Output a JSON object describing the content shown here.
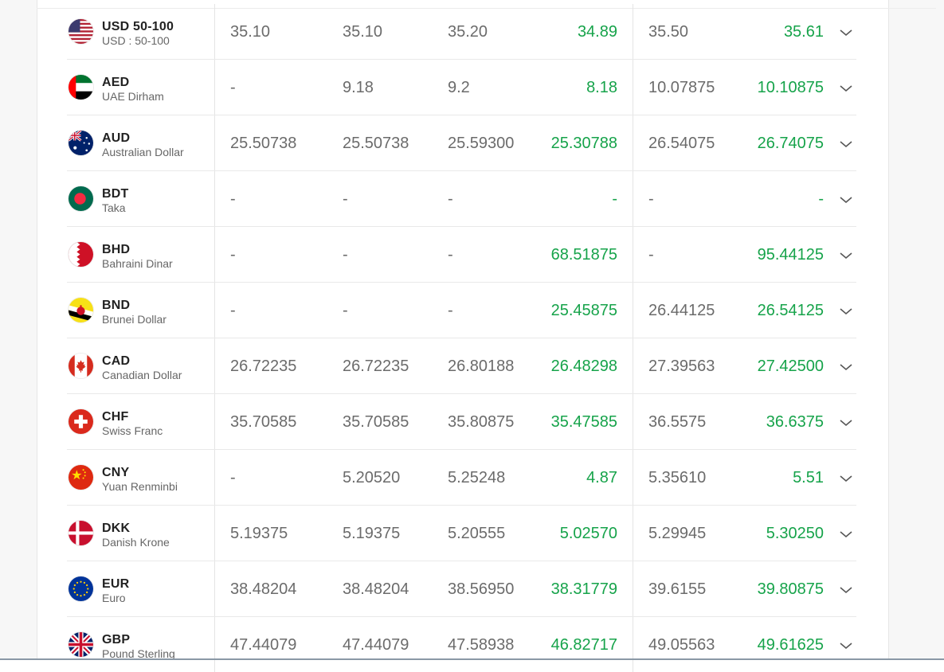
{
  "rows": [
    {
      "code": "USD  50-100",
      "name": "USD : 50-100",
      "flag": "us-flag-icon",
      "v": [
        "35.10",
        "35.10",
        "35.20",
        "34.89",
        "35.50",
        "35.61"
      ]
    },
    {
      "code": "AED",
      "name": "UAE Dirham",
      "flag": "uae-flag-icon",
      "v": [
        "-",
        "9.18",
        "9.2",
        "8.18",
        "10.07875",
        "10.10875"
      ]
    },
    {
      "code": "AUD",
      "name": "Australian Dollar",
      "flag": "australia-flag-icon",
      "v": [
        "25.50738",
        "25.50738",
        "25.59300",
        "25.30788",
        "26.54075",
        "26.74075"
      ]
    },
    {
      "code": "BDT",
      "name": "Taka",
      "flag": "bangladesh-flag-icon",
      "v": [
        "-",
        "-",
        "-",
        "-",
        "-",
        "-"
      ]
    },
    {
      "code": "BHD",
      "name": "Bahraini Dinar",
      "flag": "bahrain-flag-icon",
      "v": [
        "-",
        "-",
        "-",
        "68.51875",
        "-",
        "95.44125"
      ]
    },
    {
      "code": "BND",
      "name": "Brunei Dollar",
      "flag": "brunei-flag-icon",
      "v": [
        "-",
        "-",
        "-",
        "25.45875",
        "26.44125",
        "26.54125"
      ]
    },
    {
      "code": "CAD",
      "name": "Canadian Dollar",
      "flag": "canada-flag-icon",
      "v": [
        "26.72235",
        "26.72235",
        "26.80188",
        "26.48298",
        "27.39563",
        "27.42500"
      ]
    },
    {
      "code": "CHF",
      "name": "Swiss Franc",
      "flag": "swiss-flag-icon",
      "v": [
        "35.70585",
        "35.70585",
        "35.80875",
        "35.47585",
        "36.5575",
        "36.6375"
      ]
    },
    {
      "code": "CNY",
      "name": "Yuan Renminbi",
      "flag": "china-flag-icon",
      "v": [
        "-",
        "5.20520",
        "5.25248",
        "4.87",
        "5.35610",
        "5.51"
      ]
    },
    {
      "code": "DKK",
      "name": "Danish Krone",
      "flag": "denmark-flag-icon",
      "v": [
        "5.19375",
        "5.19375",
        "5.20555",
        "5.02570",
        "5.29945",
        "5.30250"
      ]
    },
    {
      "code": "EUR",
      "name": "Euro",
      "flag": "eu-flag-icon",
      "v": [
        "38.48204",
        "38.48204",
        "38.56950",
        "38.31779",
        "39.6155",
        "39.80875"
      ]
    },
    {
      "code": "GBP",
      "name": "Pound Sterling",
      "flag": "uk-flag-icon",
      "v": [
        "47.44079",
        "47.44079",
        "47.58938",
        "46.82717",
        "49.05563",
        "49.61625"
      ]
    }
  ],
  "colors": {
    "accent_green": "#16a34a",
    "text_gray": "#6b6b6b"
  }
}
